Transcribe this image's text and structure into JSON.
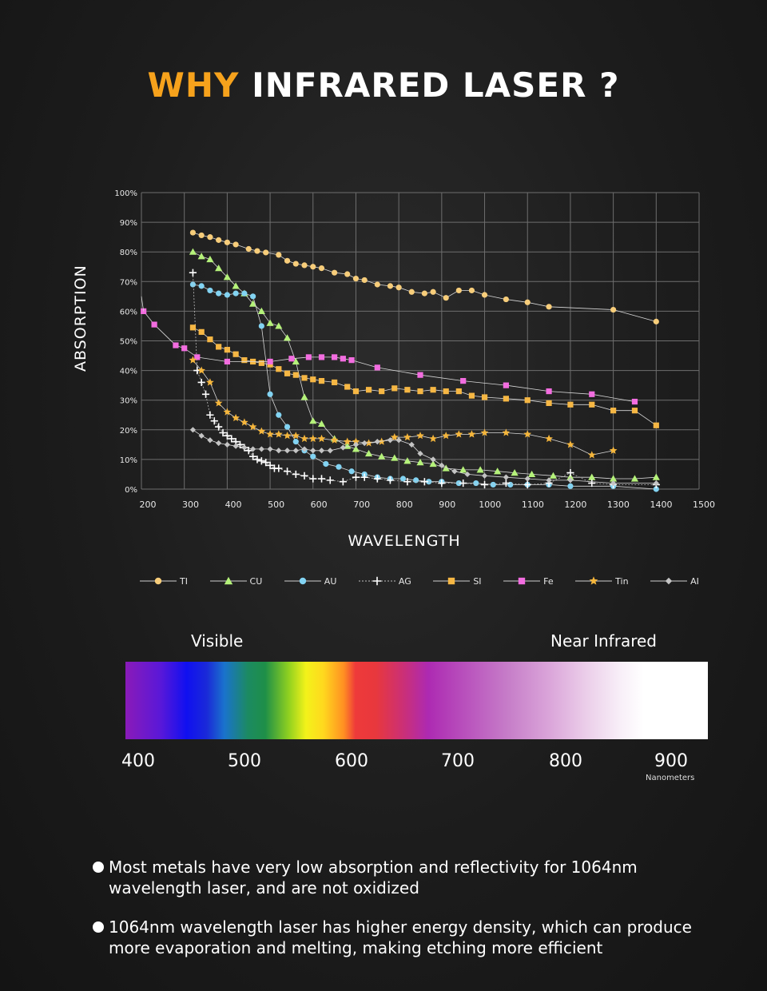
{
  "header": {
    "title_accent": "WHY",
    "title_rest": "INFRARED LASER ?"
  },
  "colors": {
    "accent": "#f6a21c",
    "background": "#1c1c1c"
  },
  "chart_data": {
    "type": "line",
    "title": "",
    "xlabel": "WAVELENGTH",
    "ylabel": "ABSORPTION",
    "xlim": [
      200,
      1500
    ],
    "ylim": [
      0,
      100
    ],
    "xticks": [
      "200",
      "300",
      "400",
      "500",
      "600",
      "700",
      "800",
      "900",
      "1000",
      "1100",
      "1200",
      "1300",
      "1400",
      "1500"
    ],
    "yticks": [
      "0%",
      "10%",
      "20%",
      "30%",
      "40%",
      "50%",
      "60%",
      "70%",
      "80%",
      "90%",
      "100%"
    ],
    "grid": true,
    "legend_position": "bottom",
    "series": [
      {
        "name": "TI",
        "color": "#f7cd7a",
        "marker": "circle",
        "points": [
          [
            320,
            86.5
          ],
          [
            340,
            85.6
          ],
          [
            360,
            85
          ],
          [
            380,
            84
          ],
          [
            400,
            83.2
          ],
          [
            420,
            82.5
          ],
          [
            450,
            81
          ],
          [
            470,
            80.3
          ],
          [
            490,
            79.8
          ],
          [
            520,
            79
          ],
          [
            540,
            77
          ],
          [
            560,
            76
          ],
          [
            580,
            75.5
          ],
          [
            600,
            75
          ],
          [
            620,
            74.5
          ],
          [
            650,
            73
          ],
          [
            680,
            72.5
          ],
          [
            700,
            71
          ],
          [
            720,
            70.5
          ],
          [
            750,
            69
          ],
          [
            780,
            68.5
          ],
          [
            800,
            68
          ],
          [
            830,
            66.5
          ],
          [
            860,
            66
          ],
          [
            880,
            66.5
          ],
          [
            910,
            64.5
          ],
          [
            940,
            67
          ],
          [
            970,
            67
          ],
          [
            1000,
            65.5
          ],
          [
            1050,
            64
          ],
          [
            1100,
            63
          ],
          [
            1150,
            61.5
          ],
          [
            1300,
            60.5
          ],
          [
            1400,
            56.5
          ]
        ]
      },
      {
        "name": "CU",
        "color": "#b5f27a",
        "marker": "triangle",
        "points": [
          [
            320,
            80
          ],
          [
            340,
            78.5
          ],
          [
            360,
            77.5
          ],
          [
            380,
            74.5
          ],
          [
            400,
            71.5
          ],
          [
            420,
            68.5
          ],
          [
            440,
            66
          ],
          [
            460,
            62.5
          ],
          [
            480,
            60
          ],
          [
            500,
            56
          ],
          [
            520,
            55
          ],
          [
            540,
            51
          ],
          [
            560,
            43
          ],
          [
            580,
            31
          ],
          [
            600,
            23
          ],
          [
            620,
            22
          ],
          [
            650,
            17
          ],
          [
            680,
            14.5
          ],
          [
            700,
            13.5
          ],
          [
            730,
            12
          ],
          [
            760,
            11
          ],
          [
            790,
            10.5
          ],
          [
            820,
            9.5
          ],
          [
            850,
            9
          ],
          [
            880,
            8.5
          ],
          [
            910,
            7
          ],
          [
            950,
            6.5
          ],
          [
            990,
            6.5
          ],
          [
            1030,
            6
          ],
          [
            1070,
            5.5
          ],
          [
            1110,
            5
          ],
          [
            1160,
            4.5
          ],
          [
            1200,
            4
          ],
          [
            1250,
            4
          ],
          [
            1300,
            3.5
          ],
          [
            1350,
            3.5
          ],
          [
            1400,
            4
          ]
        ]
      },
      {
        "name": "AU",
        "color": "#82d3f2",
        "marker": "circle",
        "points": [
          [
            320,
            69
          ],
          [
            340,
            68.5
          ],
          [
            360,
            67
          ],
          [
            380,
            66
          ],
          [
            400,
            65.5
          ],
          [
            420,
            66
          ],
          [
            440,
            66
          ],
          [
            460,
            65
          ],
          [
            480,
            55
          ],
          [
            500,
            32
          ],
          [
            520,
            25
          ],
          [
            540,
            21
          ],
          [
            560,
            16
          ],
          [
            580,
            13
          ],
          [
            600,
            11
          ],
          [
            630,
            8.5
          ],
          [
            660,
            7.5
          ],
          [
            690,
            6
          ],
          [
            720,
            5
          ],
          [
            750,
            4
          ],
          [
            780,
            3.5
          ],
          [
            810,
            3.5
          ],
          [
            840,
            3
          ],
          [
            870,
            2.5
          ],
          [
            900,
            2.5
          ],
          [
            940,
            2
          ],
          [
            980,
            2
          ],
          [
            1020,
            1.5
          ],
          [
            1060,
            1.5
          ],
          [
            1100,
            1.5
          ],
          [
            1150,
            1.5
          ],
          [
            1200,
            1
          ],
          [
            1300,
            1
          ],
          [
            1400,
            0
          ]
        ]
      },
      {
        "name": "AG",
        "color": "#ffffff",
        "marker": "plus",
        "dashed": true,
        "points": [
          [
            320,
            73
          ],
          [
            330,
            40
          ],
          [
            340,
            36
          ],
          [
            350,
            32
          ],
          [
            360,
            25
          ],
          [
            370,
            23
          ],
          [
            380,
            21
          ],
          [
            390,
            19
          ],
          [
            400,
            18
          ],
          [
            410,
            17
          ],
          [
            420,
            16
          ],
          [
            430,
            15
          ],
          [
            440,
            14
          ],
          [
            450,
            13
          ],
          [
            460,
            11
          ],
          [
            470,
            10
          ],
          [
            480,
            9.5
          ],
          [
            490,
            9
          ],
          [
            500,
            8
          ],
          [
            510,
            7
          ],
          [
            520,
            7
          ],
          [
            540,
            6
          ],
          [
            560,
            5
          ],
          [
            580,
            4.5
          ],
          [
            600,
            3.5
          ],
          [
            620,
            3.5
          ],
          [
            640,
            3
          ],
          [
            670,
            2.5
          ],
          [
            700,
            4
          ],
          [
            720,
            4
          ],
          [
            750,
            3.5
          ],
          [
            780,
            3
          ],
          [
            820,
            2.5
          ],
          [
            860,
            2.5
          ],
          [
            900,
            2
          ],
          [
            950,
            2
          ],
          [
            1000,
            1.5
          ],
          [
            1050,
            2
          ],
          [
            1100,
            1.5
          ],
          [
            1150,
            2
          ],
          [
            1200,
            5.5
          ],
          [
            1250,
            2
          ],
          [
            1300,
            1.5
          ],
          [
            1400,
            1.5
          ]
        ]
      },
      {
        "name": "SI",
        "color": "#f6b744",
        "marker": "square",
        "points": [
          [
            320,
            54.5
          ],
          [
            340,
            53
          ],
          [
            360,
            50.5
          ],
          [
            380,
            48
          ],
          [
            400,
            47
          ],
          [
            420,
            45.5
          ],
          [
            440,
            43.5
          ],
          [
            460,
            43
          ],
          [
            480,
            42.5
          ],
          [
            500,
            42
          ],
          [
            520,
            40.5
          ],
          [
            540,
            39
          ],
          [
            560,
            38.5
          ],
          [
            580,
            37.5
          ],
          [
            600,
            37
          ],
          [
            620,
            36.5
          ],
          [
            650,
            36
          ],
          [
            680,
            34.5
          ],
          [
            700,
            33
          ],
          [
            730,
            33.5
          ],
          [
            760,
            33
          ],
          [
            790,
            34
          ],
          [
            820,
            33.5
          ],
          [
            850,
            33
          ],
          [
            880,
            33.5
          ],
          [
            910,
            33
          ],
          [
            940,
            33
          ],
          [
            970,
            31.5
          ],
          [
            1000,
            31
          ],
          [
            1050,
            30.5
          ],
          [
            1100,
            30
          ],
          [
            1150,
            29
          ],
          [
            1200,
            28.5
          ],
          [
            1250,
            28.5
          ],
          [
            1300,
            26.5
          ],
          [
            1350,
            26.5
          ],
          [
            1400,
            21.5
          ]
        ]
      },
      {
        "name": "Fe",
        "color": "#f36de0",
        "marker": "square",
        "points": [
          [
            205,
            60
          ],
          [
            230,
            55.5
          ],
          [
            280,
            48.5
          ],
          [
            300,
            47.5
          ],
          [
            330,
            44.5
          ],
          [
            400,
            43
          ],
          [
            500,
            43
          ],
          [
            550,
            44
          ],
          [
            590,
            44.5
          ],
          [
            620,
            44.5
          ],
          [
            650,
            44.5
          ],
          [
            670,
            44
          ],
          [
            690,
            43.5
          ],
          [
            750,
            41
          ],
          [
            850,
            38.5
          ],
          [
            950,
            36.5
          ],
          [
            1050,
            35
          ],
          [
            1150,
            33
          ],
          [
            1250,
            32
          ],
          [
            1350,
            29.5
          ]
        ]
      },
      {
        "name": "Tin",
        "color": "#f5b63c",
        "marker": "star",
        "points": [
          [
            320,
            43.5
          ],
          [
            340,
            40
          ],
          [
            360,
            36
          ],
          [
            380,
            29
          ],
          [
            400,
            26
          ],
          [
            420,
            24
          ],
          [
            440,
            22.5
          ],
          [
            460,
            21
          ],
          [
            480,
            19.5
          ],
          [
            500,
            18.5
          ],
          [
            520,
            18.5
          ],
          [
            540,
            18
          ],
          [
            560,
            18
          ],
          [
            580,
            17
          ],
          [
            600,
            17
          ],
          [
            620,
            17
          ],
          [
            650,
            16.5
          ],
          [
            680,
            16
          ],
          [
            700,
            16
          ],
          [
            730,
            15.5
          ],
          [
            760,
            16
          ],
          [
            790,
            17.5
          ],
          [
            820,
            17.5
          ],
          [
            850,
            18
          ],
          [
            880,
            17
          ],
          [
            910,
            18
          ],
          [
            940,
            18.5
          ],
          [
            970,
            18.5
          ],
          [
            1000,
            19
          ],
          [
            1050,
            19
          ],
          [
            1100,
            18.5
          ],
          [
            1150,
            17
          ],
          [
            1200,
            15
          ],
          [
            1250,
            11.5
          ],
          [
            1300,
            13
          ]
        ]
      },
      {
        "name": "AI",
        "color": "#c4c4c4",
        "marker": "diamond",
        "points": [
          [
            320,
            20
          ],
          [
            340,
            18
          ],
          [
            360,
            16.5
          ],
          [
            380,
            15.5
          ],
          [
            400,
            15
          ],
          [
            420,
            14.5
          ],
          [
            440,
            14
          ],
          [
            460,
            13.5
          ],
          [
            480,
            13.5
          ],
          [
            500,
            13.5
          ],
          [
            520,
            13
          ],
          [
            540,
            13
          ],
          [
            560,
            13
          ],
          [
            580,
            13.5
          ],
          [
            600,
            13
          ],
          [
            620,
            13
          ],
          [
            640,
            13
          ],
          [
            670,
            14
          ],
          [
            700,
            15
          ],
          [
            720,
            15.5
          ],
          [
            750,
            16
          ],
          [
            780,
            16.5
          ],
          [
            800,
            16.5
          ],
          [
            830,
            15
          ],
          [
            850,
            12
          ],
          [
            880,
            10
          ],
          [
            900,
            8
          ],
          [
            930,
            6
          ],
          [
            960,
            5
          ],
          [
            1000,
            4.5
          ],
          [
            1050,
            4
          ],
          [
            1100,
            3.5
          ],
          [
            1150,
            3
          ],
          [
            1200,
            3
          ],
          [
            1300,
            2
          ],
          [
            1400,
            2
          ]
        ]
      }
    ]
  },
  "spectrum": {
    "label_visible": "Visible",
    "label_near_infrared": "Near Infrared",
    "ticks": [
      "400",
      "500",
      "600",
      "700",
      "800",
      "900"
    ],
    "unit_label": "Nanometers"
  },
  "bullets": [
    "Most metals have very low absorption and reflectivity for 1064nm wavelength laser, and are not oxidized",
    "1064nm wavelength laser has higher energy density, which can produce more evaporation and melting, making etching more efficient"
  ]
}
